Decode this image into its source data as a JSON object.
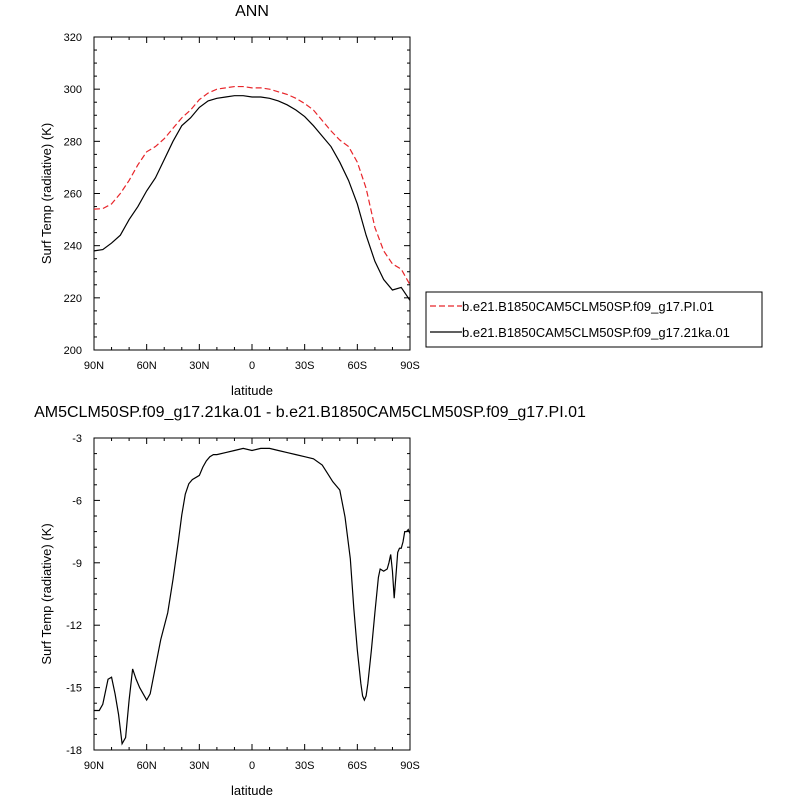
{
  "chart_data": [
    {
      "type": "line",
      "title": "ANN",
      "xlabel": "latitude",
      "ylabel": "Surf Temp (radiative) (K)",
      "xlim": [
        -90,
        90
      ],
      "ylim": [
        200,
        320
      ],
      "x_tick_values": [
        -90,
        -60,
        -30,
        0,
        30,
        60,
        90
      ],
      "x_tick_labels": [
        "90N",
        "60N",
        "30N",
        "0",
        "30S",
        "60S",
        "90S"
      ],
      "y_ticks": [
        200,
        220,
        240,
        260,
        280,
        300,
        320
      ],
      "x_orientation": "north-to-south (90N at left, 90S at right)",
      "grid": false,
      "legend_position": "right-middle",
      "series": [
        {
          "name": "b.e21.B1850CAM5CLM50SP.f09_g17.PI.01",
          "color": "#e8262b",
          "style": "dashed",
          "x": [
            -90,
            -85,
            -80,
            -75,
            -70,
            -65,
            -60,
            -55,
            -50,
            -45,
            -40,
            -35,
            -30,
            -25,
            -20,
            -15,
            -10,
            -5,
            0,
            5,
            10,
            15,
            20,
            25,
            30,
            35,
            40,
            45,
            50,
            55,
            60,
            65,
            70,
            75,
            80,
            85,
            90
          ],
          "values": [
            254,
            254.2,
            256,
            260,
            265,
            271,
            276,
            278,
            281,
            285,
            289,
            292,
            296,
            298.5,
            300,
            300.5,
            301,
            301,
            300.5,
            300.5,
            300,
            299,
            298,
            296.5,
            294.5,
            292,
            288,
            284,
            280.5,
            278,
            272,
            262,
            247,
            238,
            233,
            231,
            225
          ]
        },
        {
          "name": "b.e21.B1850CAM5CLM50SP.f09_g17.21ka.01",
          "color": "#000000",
          "style": "solid",
          "x": [
            -90,
            -85,
            -80,
            -75,
            -70,
            -65,
            -60,
            -55,
            -50,
            -45,
            -40,
            -35,
            -30,
            -25,
            -20,
            -15,
            -10,
            -5,
            0,
            5,
            10,
            15,
            20,
            25,
            30,
            35,
            40,
            45,
            50,
            55,
            60,
            65,
            70,
            75,
            80,
            85,
            90
          ],
          "values": [
            238,
            238.5,
            241,
            244,
            250,
            255,
            261,
            266,
            273,
            280,
            286,
            289,
            293,
            295.5,
            296.5,
            297,
            297.5,
            297.5,
            297,
            297,
            296.5,
            295.5,
            294,
            292,
            289.5,
            286,
            282,
            278,
            272,
            265,
            256,
            244,
            234,
            227,
            223,
            224,
            219
          ]
        }
      ]
    },
    {
      "type": "line",
      "title": "AM5CLM50SP.f09_g17.21ka.01 - b.e21.B1850CAM5CLM50SP.f09_g17.PI.01",
      "xlabel": "latitude",
      "ylabel": "Surf Temp (radiative) (K)",
      "xlim": [
        -90,
        90
      ],
      "ylim": [
        -18,
        -3
      ],
      "x_tick_values": [
        -90,
        -60,
        -30,
        0,
        30,
        60,
        90
      ],
      "x_tick_labels": [
        "90N",
        "60N",
        "30N",
        "0",
        "30S",
        "60S",
        "90S"
      ],
      "y_ticks": [
        -18,
        -15,
        -12,
        -9,
        -6,
        -3
      ],
      "y_tick_labels": [
        "-18",
        "-15",
        "-12",
        "-9",
        "-6",
        "-3"
      ],
      "x_orientation": "north-to-south (90N at left, 90S at right)",
      "grid": false,
      "series": [
        {
          "color": "#000000",
          "style": "solid",
          "x": [
            -90,
            -87,
            -85,
            -82,
            -80,
            -78,
            -76,
            -74,
            -72,
            -70,
            -68,
            -66,
            -64,
            -62,
            -60,
            -58,
            -55,
            -52,
            -48,
            -45,
            -42,
            -40,
            -38,
            -36,
            -34,
            -30,
            -28,
            -26,
            -24,
            -22,
            -20,
            -15,
            -10,
            -5,
            0,
            5,
            10,
            15,
            20,
            25,
            30,
            35,
            40,
            43,
            46,
            50,
            53,
            56,
            58,
            60,
            62,
            63,
            64,
            65,
            66,
            68,
            70,
            72,
            73,
            75,
            77,
            78,
            79,
            80,
            81,
            82,
            83,
            84,
            85,
            86,
            87,
            88,
            89,
            90
          ],
          "values": [
            -16.1,
            -16.1,
            -15.8,
            -14.6,
            -14.5,
            -15.3,
            -16.3,
            -17.7,
            -17.4,
            -15.6,
            -14.1,
            -14.6,
            -15.0,
            -15.3,
            -15.6,
            -15.3,
            -14.0,
            -12.7,
            -11.4,
            -9.8,
            -8.0,
            -6.7,
            -5.7,
            -5.2,
            -5.0,
            -4.8,
            -4.4,
            -4.1,
            -3.9,
            -3.8,
            -3.8,
            -3.7,
            -3.6,
            -3.5,
            -3.6,
            -3.5,
            -3.5,
            -3.6,
            -3.7,
            -3.8,
            -3.9,
            -4.0,
            -4.3,
            -4.7,
            -5.1,
            -5.5,
            -6.8,
            -8.8,
            -11.2,
            -13.2,
            -14.8,
            -15.4,
            -15.6,
            -15.4,
            -14.8,
            -13.2,
            -11.4,
            -9.7,
            -9.3,
            -9.4,
            -9.3,
            -9.0,
            -8.6,
            -9.4,
            -10.7,
            -9.6,
            -8.5,
            -8.3,
            -8.3,
            -8.0,
            -7.5,
            -7.5,
            -7.4,
            -7.6
          ]
        }
      ]
    }
  ]
}
